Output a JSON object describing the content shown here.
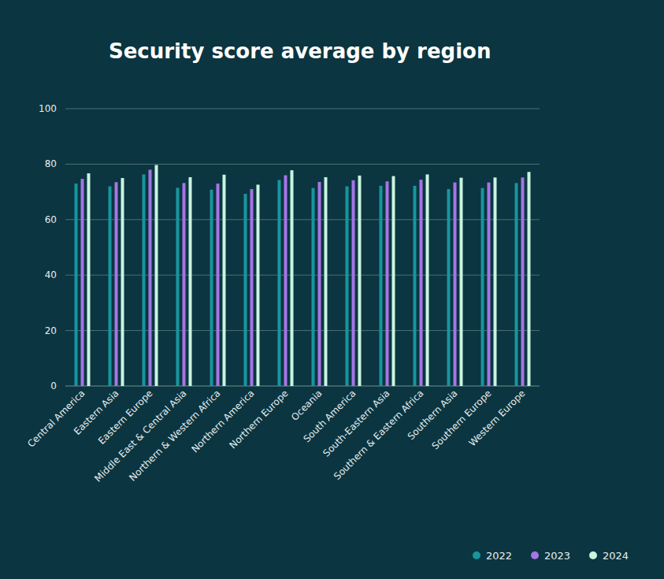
{
  "chart_data": {
    "type": "bar",
    "title": "Security score average by region",
    "categories": [
      "Central America",
      "Eastern Asia",
      "Eastern Europe",
      "Middle East & Central Asia",
      "Northern & Western Africa",
      "Northern America",
      "Northern Europe",
      "Oceania",
      "South America",
      "South-Eastern Asia",
      "Southern & Eastern Africa",
      "Southern Asia",
      "Southern Europe",
      "Western Europe"
    ],
    "series": [
      {
        "name": "2022",
        "color": "#17969f",
        "values": [
          73,
          72,
          76.3,
          71.5,
          70.8,
          69.3,
          74.3,
          71.4,
          72,
          72.2,
          72.2,
          71,
          71.4,
          73.2
        ]
      },
      {
        "name": "2023",
        "color": "#a675e6",
        "values": [
          74.7,
          73.5,
          78,
          73.2,
          73,
          71,
          76,
          73.6,
          74.2,
          73.8,
          74.4,
          73.4,
          73.4,
          75.2
        ]
      },
      {
        "name": "2024",
        "color": "#c9f4df",
        "values": [
          76.7,
          75,
          79.7,
          75.3,
          76.2,
          72.6,
          77.8,
          75.3,
          75.9,
          75.7,
          76.3,
          75.1,
          75.2,
          77.2
        ]
      }
    ],
    "ylim": [
      0,
      100
    ],
    "yticks": [
      0,
      20,
      40,
      60,
      80,
      100
    ],
    "grid": true,
    "legend": "bottom-right"
  }
}
